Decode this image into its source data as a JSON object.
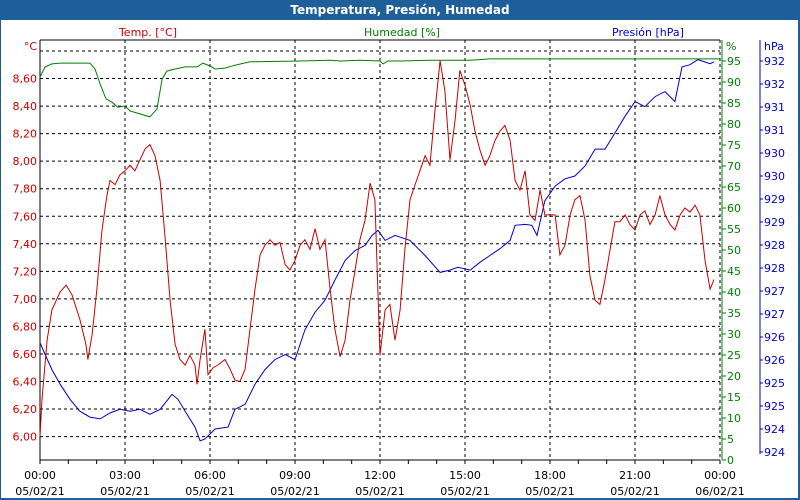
{
  "window": {
    "title": "Temperatura, Presión, Humedad"
  },
  "chart_data": {
    "type": "line",
    "title": "Temperatura, Presión, Humedad",
    "colors": {
      "temp": "#cc0000",
      "hum": "#008000",
      "pres": "#0000cc",
      "title_bar": "#1f5f99"
    },
    "legend": {
      "temp": "Temp. [°C]",
      "hum": "Humedad [%]",
      "pres": "Presión [hPa]"
    },
    "axes": {
      "temp": {
        "unit": "°C",
        "ylim": [
          5.83,
          8.88
        ],
        "ticks": [
          "6,00",
          "6,20",
          "6,40",
          "6,60",
          "6,80",
          "7,00",
          "7,20",
          "7,40",
          "7,60",
          "7,80",
          "8,00",
          "8,20",
          "8,40",
          "8,60"
        ]
      },
      "hum": {
        "unit": "%",
        "ylim": [
          0,
          100
        ],
        "ticks": [
          "0",
          "5",
          "10",
          "15",
          "20",
          "25",
          "30",
          "35",
          "40",
          "45",
          "50",
          "55",
          "60",
          "65",
          "70",
          "75",
          "80",
          "85",
          "90",
          "95"
        ]
      },
      "pres": {
        "unit": "hPa",
        "ylim": [
          923.6,
          932.8
        ],
        "ticks": [
          "924",
          "924",
          "925",
          "925",
          "926",
          "926",
          "927",
          "927",
          "928",
          "928",
          "929",
          "929",
          "930",
          "930",
          "931",
          "931",
          "932",
          "932"
        ]
      },
      "x": {
        "xlim_hours": [
          0,
          24
        ],
        "ticks": [
          {
            "time": "00:00",
            "date": "05/02/21"
          },
          {
            "time": "03:00",
            "date": "05/02/21"
          },
          {
            "time": "06:00",
            "date": "05/02/21"
          },
          {
            "time": "09:00",
            "date": "05/02/21"
          },
          {
            "time": "12:00",
            "date": "05/02/21"
          },
          {
            "time": "15:00",
            "date": "05/02/21"
          },
          {
            "time": "18:00",
            "date": "05/02/21"
          },
          {
            "time": "21:00",
            "date": "05/02/21"
          },
          {
            "time": "00:00",
            "date": "06/02/21"
          }
        ]
      }
    },
    "grid": true,
    "series": [
      {
        "name": "Temp. [°C]",
        "axis": "temp",
        "points": [
          [
            0,
            6.0
          ],
          [
            0.07,
            6.27
          ],
          [
            0.25,
            6.7
          ],
          [
            0.42,
            6.92
          ],
          [
            0.71,
            7.05
          ],
          [
            0.92,
            7.1
          ],
          [
            1.13,
            7.03
          ],
          [
            1.41,
            6.85
          ],
          [
            1.62,
            6.67
          ],
          [
            1.69,
            6.56
          ],
          [
            1.84,
            6.74
          ],
          [
            2.01,
            7.07
          ],
          [
            2.19,
            7.5
          ],
          [
            2.36,
            7.75
          ],
          [
            2.47,
            7.86
          ],
          [
            2.65,
            7.83
          ],
          [
            2.82,
            7.9
          ],
          [
            3.0,
            7.93
          ],
          [
            3.18,
            7.97
          ],
          [
            3.35,
            7.93
          ],
          [
            3.53,
            8.01
          ],
          [
            3.71,
            8.09
          ],
          [
            3.88,
            8.12
          ],
          [
            4.06,
            8.04
          ],
          [
            4.24,
            7.86
          ],
          [
            4.41,
            7.46
          ],
          [
            4.59,
            6.99
          ],
          [
            4.77,
            6.67
          ],
          [
            4.94,
            6.56
          ],
          [
            5.12,
            6.52
          ],
          [
            5.29,
            6.59
          ],
          [
            5.47,
            6.52
          ],
          [
            5.54,
            6.38
          ],
          [
            5.65,
            6.56
          ],
          [
            5.82,
            6.78
          ],
          [
            5.93,
            6.45
          ],
          [
            6.11,
            6.5
          ],
          [
            6.28,
            6.52
          ],
          [
            6.53,
            6.56
          ],
          [
            6.71,
            6.49
          ],
          [
            6.88,
            6.41
          ],
          [
            7.06,
            6.4
          ],
          [
            7.24,
            6.49
          ],
          [
            7.41,
            6.78
          ],
          [
            7.59,
            7.07
          ],
          [
            7.77,
            7.32
          ],
          [
            7.94,
            7.39
          ],
          [
            8.12,
            7.43
          ],
          [
            8.29,
            7.39
          ],
          [
            8.47,
            7.41
          ],
          [
            8.65,
            7.25
          ],
          [
            8.82,
            7.21
          ],
          [
            9.0,
            7.28
          ],
          [
            9.18,
            7.39
          ],
          [
            9.35,
            7.43
          ],
          [
            9.53,
            7.36
          ],
          [
            9.71,
            7.51
          ],
          [
            9.88,
            7.36
          ],
          [
            10.06,
            7.43
          ],
          [
            10.24,
            7.07
          ],
          [
            10.41,
            6.78
          ],
          [
            10.59,
            6.58
          ],
          [
            10.77,
            6.7
          ],
          [
            10.94,
            6.99
          ],
          [
            11.12,
            7.21
          ],
          [
            11.29,
            7.43
          ],
          [
            11.47,
            7.57
          ],
          [
            11.65,
            7.84
          ],
          [
            11.82,
            7.72
          ],
          [
            12.0,
            6.59
          ],
          [
            12.18,
            6.92
          ],
          [
            12.35,
            6.96
          ],
          [
            12.53,
            6.7
          ],
          [
            12.71,
            6.92
          ],
          [
            12.88,
            7.36
          ],
          [
            13.06,
            7.72
          ],
          [
            13.24,
            7.83
          ],
          [
            13.41,
            7.93
          ],
          [
            13.59,
            8.04
          ],
          [
            13.76,
            7.97
          ],
          [
            13.94,
            8.37
          ],
          [
            14.12,
            8.73
          ],
          [
            14.29,
            8.51
          ],
          [
            14.47,
            8.01
          ],
          [
            14.65,
            8.3
          ],
          [
            14.82,
            8.66
          ],
          [
            15.0,
            8.55
          ],
          [
            15.18,
            8.41
          ],
          [
            15.35,
            8.22
          ],
          [
            15.53,
            8.08
          ],
          [
            15.71,
            7.97
          ],
          [
            15.88,
            8.04
          ],
          [
            16.06,
            8.15
          ],
          [
            16.24,
            8.22
          ],
          [
            16.41,
            8.26
          ],
          [
            16.59,
            8.15
          ],
          [
            16.77,
            7.86
          ],
          [
            16.94,
            7.79
          ],
          [
            17.12,
            7.93
          ],
          [
            17.29,
            7.61
          ],
          [
            17.47,
            7.57
          ],
          [
            17.65,
            7.79
          ],
          [
            17.82,
            7.61
          ],
          [
            18.18,
            7.61
          ],
          [
            18.35,
            7.32
          ],
          [
            18.53,
            7.39
          ],
          [
            18.71,
            7.61
          ],
          [
            18.88,
            7.72
          ],
          [
            19.06,
            7.75
          ],
          [
            19.24,
            7.57
          ],
          [
            19.41,
            7.17
          ],
          [
            19.59,
            6.99
          ],
          [
            19.76,
            6.96
          ],
          [
            19.94,
            7.14
          ],
          [
            20.12,
            7.36
          ],
          [
            20.29,
            7.56
          ],
          [
            20.47,
            7.56
          ],
          [
            20.65,
            7.61
          ],
          [
            20.82,
            7.54
          ],
          [
            21.0,
            7.5
          ],
          [
            21.18,
            7.61
          ],
          [
            21.35,
            7.64
          ],
          [
            21.53,
            7.54
          ],
          [
            21.71,
            7.61
          ],
          [
            21.88,
            7.75
          ],
          [
            22.06,
            7.61
          ],
          [
            22.24,
            7.54
          ],
          [
            22.41,
            7.5
          ],
          [
            22.59,
            7.61
          ],
          [
            22.76,
            7.66
          ],
          [
            22.94,
            7.63
          ],
          [
            23.12,
            7.68
          ],
          [
            23.29,
            7.61
          ],
          [
            23.47,
            7.28
          ],
          [
            23.65,
            7.07
          ],
          [
            23.79,
            7.14
          ]
        ]
      },
      {
        "name": "Humedad [%]",
        "axis": "hum",
        "points": [
          [
            0,
            91.2
          ],
          [
            0.18,
            93.6
          ],
          [
            0.42,
            94.3
          ],
          [
            0.71,
            94.5
          ],
          [
            1.76,
            94.5
          ],
          [
            1.94,
            93.1
          ],
          [
            2.12,
            89.5
          ],
          [
            2.33,
            86.0
          ],
          [
            2.54,
            85.2
          ],
          [
            2.75,
            84.0
          ],
          [
            3.0,
            84.3
          ],
          [
            3.18,
            83.1
          ],
          [
            3.53,
            82.4
          ],
          [
            3.88,
            81.7
          ],
          [
            4.13,
            83.6
          ],
          [
            4.31,
            90.7
          ],
          [
            4.48,
            92.6
          ],
          [
            4.77,
            93.1
          ],
          [
            5.12,
            93.6
          ],
          [
            5.54,
            93.6
          ],
          [
            5.75,
            94.5
          ],
          [
            6.0,
            93.8
          ],
          [
            6.18,
            93.1
          ],
          [
            6.53,
            93.3
          ],
          [
            6.88,
            94.0
          ],
          [
            7.41,
            94.8
          ],
          [
            9.18,
            95.0
          ],
          [
            10.24,
            95.2
          ],
          [
            10.59,
            95.0
          ],
          [
            11.29,
            95.2
          ],
          [
            12.0,
            95.0
          ],
          [
            12.11,
            94.3
          ],
          [
            12.28,
            95.0
          ],
          [
            12.71,
            95.0
          ],
          [
            13.76,
            95.2
          ],
          [
            15.18,
            95.2
          ],
          [
            15.88,
            95.5
          ],
          [
            18.0,
            95.5
          ],
          [
            19.76,
            95.5
          ],
          [
            24.0,
            95.5
          ]
        ]
      },
      {
        "name": "Presión [hPa]",
        "axis": "pres",
        "points": [
          [
            0,
            926.17
          ],
          [
            0.18,
            925.91
          ],
          [
            0.42,
            925.58
          ],
          [
            0.71,
            925.26
          ],
          [
            1.06,
            924.93
          ],
          [
            1.41,
            924.67
          ],
          [
            1.76,
            924.54
          ],
          [
            2.12,
            924.5
          ],
          [
            2.47,
            924.63
          ],
          [
            2.82,
            924.71
          ],
          [
            3.18,
            924.67
          ],
          [
            3.53,
            924.71
          ],
          [
            3.88,
            924.6
          ],
          [
            4.24,
            924.71
          ],
          [
            4.52,
            924.93
          ],
          [
            4.66,
            925.04
          ],
          [
            4.87,
            924.93
          ],
          [
            5.12,
            924.67
          ],
          [
            5.47,
            924.32
          ],
          [
            5.65,
            924.02
          ],
          [
            5.82,
            924.06
          ],
          [
            6.18,
            924.28
          ],
          [
            6.64,
            924.32
          ],
          [
            6.88,
            924.71
          ],
          [
            7.24,
            924.82
          ],
          [
            7.59,
            925.26
          ],
          [
            7.94,
            925.58
          ],
          [
            8.29,
            925.8
          ],
          [
            8.65,
            925.91
          ],
          [
            9.0,
            925.8
          ],
          [
            9.35,
            926.45
          ],
          [
            9.71,
            926.84
          ],
          [
            10.06,
            927.1
          ],
          [
            10.41,
            927.54
          ],
          [
            10.77,
            927.97
          ],
          [
            11.12,
            928.19
          ],
          [
            11.47,
            928.3
          ],
          [
            11.72,
            928.52
          ],
          [
            11.93,
            928.63
          ],
          [
            12.18,
            928.41
          ],
          [
            12.53,
            928.52
          ],
          [
            13.06,
            928.41
          ],
          [
            13.59,
            928.08
          ],
          [
            14.12,
            927.71
          ],
          [
            14.47,
            927.76
          ],
          [
            14.75,
            927.82
          ],
          [
            15.18,
            927.76
          ],
          [
            15.53,
            927.93
          ],
          [
            15.88,
            928.08
          ],
          [
            16.24,
            928.23
          ],
          [
            16.59,
            928.41
          ],
          [
            16.77,
            928.74
          ],
          [
            17.12,
            928.76
          ],
          [
            17.36,
            928.74
          ],
          [
            17.54,
            928.52
          ],
          [
            17.82,
            929.28
          ],
          [
            18.18,
            929.6
          ],
          [
            18.53,
            929.76
          ],
          [
            18.88,
            929.82
          ],
          [
            19.24,
            930.04
          ],
          [
            19.59,
            930.41
          ],
          [
            19.94,
            930.41
          ],
          [
            20.29,
            930.76
          ],
          [
            20.65,
            931.13
          ],
          [
            21.0,
            931.45
          ],
          [
            21.35,
            931.34
          ],
          [
            21.71,
            931.56
          ],
          [
            22.06,
            931.67
          ],
          [
            22.41,
            931.45
          ],
          [
            22.66,
            932.21
          ],
          [
            22.94,
            932.26
          ],
          [
            23.22,
            932.37
          ],
          [
            23.65,
            932.28
          ],
          [
            23.79,
            932.32
          ]
        ]
      }
    ]
  }
}
